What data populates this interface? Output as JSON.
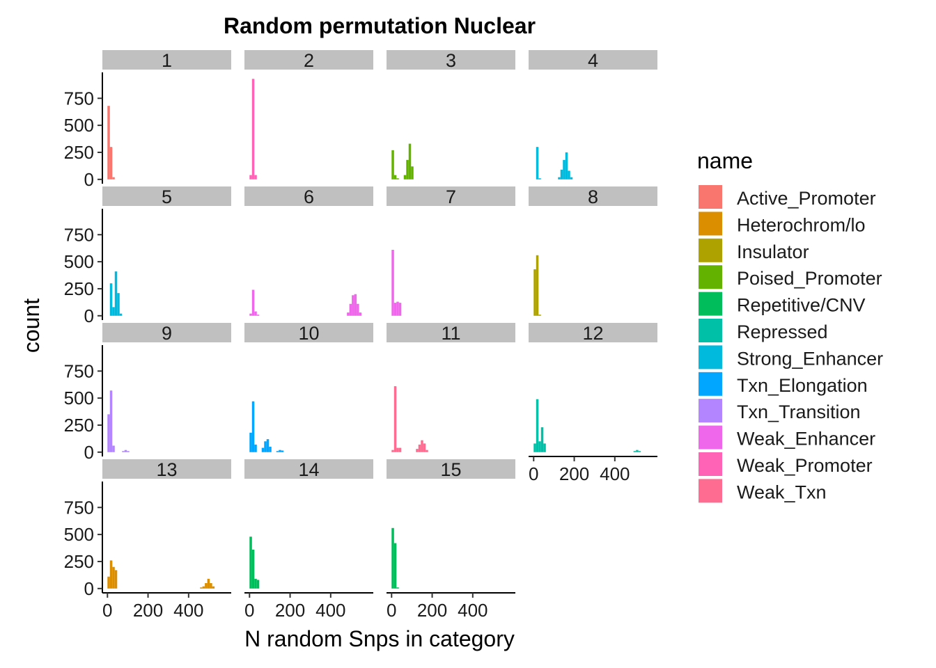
{
  "chart_data": {
    "type": "histogram",
    "title": "Random permutation Nuclear",
    "xlabel": "N random Snps in category",
    "ylabel": "count",
    "xlim": [
      -25,
      610
    ],
    "ylim": [
      -40,
      990
    ],
    "y_ticks": [
      0,
      250,
      500,
      750
    ],
    "x_ticks": [
      0,
      200,
      400
    ],
    "bin_width": 12,
    "legend": {
      "title": "name",
      "position": "right",
      "entries": [
        {
          "name": "Active_Promoter",
          "color": "#F8766D"
        },
        {
          "name": "Heterochrom/lo",
          "color": "#DB8E00"
        },
        {
          "name": "Insulator",
          "color": "#AEA200"
        },
        {
          "name": "Poised_Promoter",
          "color": "#64B200"
        },
        {
          "name": "Repetitive/CNV",
          "color": "#00BD5C"
        },
        {
          "name": "Repressed",
          "color": "#00C1A7"
        },
        {
          "name": "Strong_Enhancer",
          "color": "#00BADE"
        },
        {
          "name": "Txn_Elongation",
          "color": "#00A6FF"
        },
        {
          "name": "Txn_Transition",
          "color": "#B385FF"
        },
        {
          "name": "Weak_Enhancer",
          "color": "#EF67EB"
        },
        {
          "name": "Weak_Promoter",
          "color": "#FF63B6"
        },
        {
          "name": "Weak_Txn",
          "color": "#FF6C91"
        }
      ]
    },
    "panels": [
      {
        "label": "1",
        "category": "Active_Promoter",
        "bins": [
          [
            0,
            680
          ],
          [
            12,
            300
          ],
          [
            24,
            20
          ]
        ]
      },
      {
        "label": "2",
        "category": "Weak_Promoter",
        "bins": [
          [
            0,
            40
          ],
          [
            12,
            930
          ],
          [
            24,
            40
          ]
        ]
      },
      {
        "label": "3",
        "category": "Poised_Promoter",
        "bins": [
          [
            0,
            270
          ],
          [
            12,
            40
          ],
          [
            24,
            10
          ],
          [
            60,
            40
          ],
          [
            72,
            180
          ],
          [
            84,
            330
          ],
          [
            96,
            120
          ]
        ]
      },
      {
        "label": "4",
        "category": "Strong_Enhancer",
        "bins": [
          [
            12,
            300
          ],
          [
            24,
            10
          ],
          [
            120,
            20
          ],
          [
            132,
            90
          ],
          [
            144,
            180
          ],
          [
            156,
            250
          ],
          [
            168,
            80
          ],
          [
            180,
            20
          ]
        ]
      },
      {
        "label": "5",
        "category": "Strong_Enhancer",
        "bins": [
          [
            12,
            300
          ],
          [
            24,
            80
          ],
          [
            36,
            410
          ],
          [
            48,
            210
          ],
          [
            60,
            20
          ]
        ]
      },
      {
        "label": "6",
        "category": "Weak_Enhancer",
        "bins": [
          [
            0,
            20
          ],
          [
            12,
            240
          ],
          [
            24,
            40
          ],
          [
            36,
            10
          ],
          [
            480,
            30
          ],
          [
            492,
            110
          ],
          [
            504,
            190
          ],
          [
            516,
            200
          ],
          [
            528,
            110
          ],
          [
            540,
            30
          ]
        ]
      },
      {
        "label": "7",
        "category": "Weak_Enhancer",
        "bins": [
          [
            0,
            610
          ],
          [
            12,
            120
          ],
          [
            24,
            130
          ],
          [
            36,
            120
          ]
        ]
      },
      {
        "label": "8",
        "category": "Insulator",
        "bins": [
          [
            0,
            430
          ],
          [
            12,
            560
          ],
          [
            24,
            10
          ]
        ]
      },
      {
        "label": "9",
        "category": "Txn_Transition",
        "bins": [
          [
            0,
            350
          ],
          [
            12,
            570
          ],
          [
            24,
            60
          ],
          [
            72,
            10
          ],
          [
            84,
            20
          ],
          [
            96,
            10
          ]
        ]
      },
      {
        "label": "10",
        "category": "Txn_Elongation",
        "bins": [
          [
            0,
            180
          ],
          [
            12,
            470
          ],
          [
            24,
            70
          ],
          [
            60,
            40
          ],
          [
            72,
            100
          ],
          [
            84,
            120
          ],
          [
            96,
            50
          ],
          [
            132,
            10
          ],
          [
            144,
            20
          ],
          [
            156,
            15
          ]
        ]
      },
      {
        "label": "11",
        "category": "Weak_Txn",
        "bins": [
          [
            0,
            20
          ],
          [
            12,
            610
          ],
          [
            24,
            40
          ],
          [
            36,
            40
          ],
          [
            120,
            30
          ],
          [
            132,
            70
          ],
          [
            144,
            110
          ],
          [
            156,
            80
          ],
          [
            168,
            20
          ]
        ]
      },
      {
        "label": "12",
        "category": "Repressed",
        "bins": [
          [
            0,
            80
          ],
          [
            12,
            490
          ],
          [
            24,
            100
          ],
          [
            36,
            230
          ],
          [
            48,
            80
          ],
          [
            492,
            10
          ],
          [
            504,
            20
          ],
          [
            516,
            10
          ]
        ]
      },
      {
        "label": "13",
        "category": "Heterochrom/lo",
        "bins": [
          [
            0,
            110
          ],
          [
            12,
            260
          ],
          [
            24,
            200
          ],
          [
            36,
            170
          ],
          [
            456,
            10
          ],
          [
            468,
            20
          ],
          [
            480,
            50
          ],
          [
            492,
            90
          ],
          [
            504,
            50
          ],
          [
            516,
            20
          ]
        ]
      },
      {
        "label": "14",
        "category": "Repetitive/CNV",
        "bins": [
          [
            0,
            480
          ],
          [
            12,
            360
          ],
          [
            24,
            90
          ],
          [
            36,
            80
          ]
        ]
      },
      {
        "label": "15",
        "category": "Repetitive/CNV",
        "bins": [
          [
            0,
            560
          ],
          [
            12,
            420
          ],
          [
            24,
            10
          ]
        ]
      }
    ]
  }
}
